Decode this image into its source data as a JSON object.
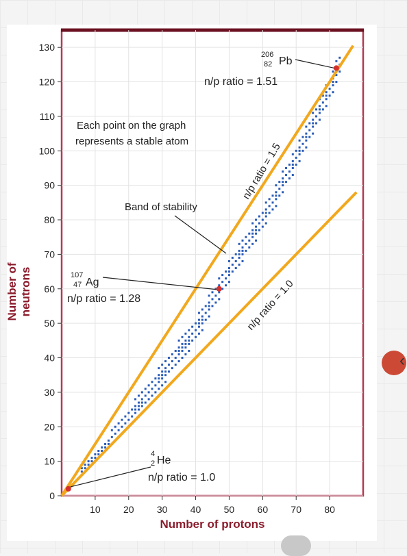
{
  "chart_data": {
    "type": "scatter",
    "title": "",
    "xlabel": "Number of protons",
    "ylabel": "Number of neutrons",
    "xlim": [
      0,
      90
    ],
    "ylim": [
      0,
      135
    ],
    "xticks": [
      10,
      20,
      30,
      40,
      50,
      60,
      70,
      80
    ],
    "yticks": [
      0,
      10,
      20,
      30,
      40,
      50,
      60,
      70,
      80,
      90,
      100,
      110,
      120,
      130
    ],
    "reference_lines": [
      {
        "name": "n/p ratio = 1.5",
        "slope": 1.5,
        "x_range": [
          0,
          87
        ]
      },
      {
        "name": "n/p ratio = 1.0",
        "slope": 1.0,
        "x_range": [
          0,
          88
        ]
      }
    ],
    "series": [
      {
        "label": "Band of stability",
        "band_center": [
          [
            1,
            1
          ],
          [
            10,
            11
          ],
          [
            20,
            22
          ],
          [
            30,
            35
          ],
          [
            40,
            48
          ],
          [
            50,
            65
          ],
          [
            60,
            80
          ],
          [
            70,
            98
          ],
          [
            80,
            118
          ],
          [
            83,
            125
          ]
        ],
        "band_halfwidth": 3
      }
    ],
    "highlighted_points": [
      {
        "x": 2,
        "y": 2
      },
      {
        "x": 47,
        "y": 60
      },
      {
        "x": 82,
        "y": 124
      }
    ],
    "annotations": {
      "he": {
        "mass": "4",
        "atomic": "2",
        "symbol": "He",
        "ratio": "n/p ratio = 1.0"
      },
      "ag": {
        "mass": "107",
        "atomic": "47",
        "symbol": "Ag",
        "ratio": "n/p ratio = 1.28"
      },
      "pb": {
        "mass": "206",
        "atomic": "82",
        "symbol": "Pb",
        "ratio": "n/p ratio = 1.51"
      },
      "note_line1": "Each point on the graph",
      "note_line2": "represents a stable atom",
      "band_label": "Band of stability",
      "line15_label": "n/p ratio = 1.5",
      "line10_label": "n/p ratio = 1.0"
    },
    "colors": {
      "points": "#2a5cb8",
      "highlight": "#d6302c",
      "ratio_lines": "#f2a81d",
      "frame_top": "#6b1020",
      "frame_side": "#b33a55",
      "axis_title": "#8b1c2c"
    }
  }
}
